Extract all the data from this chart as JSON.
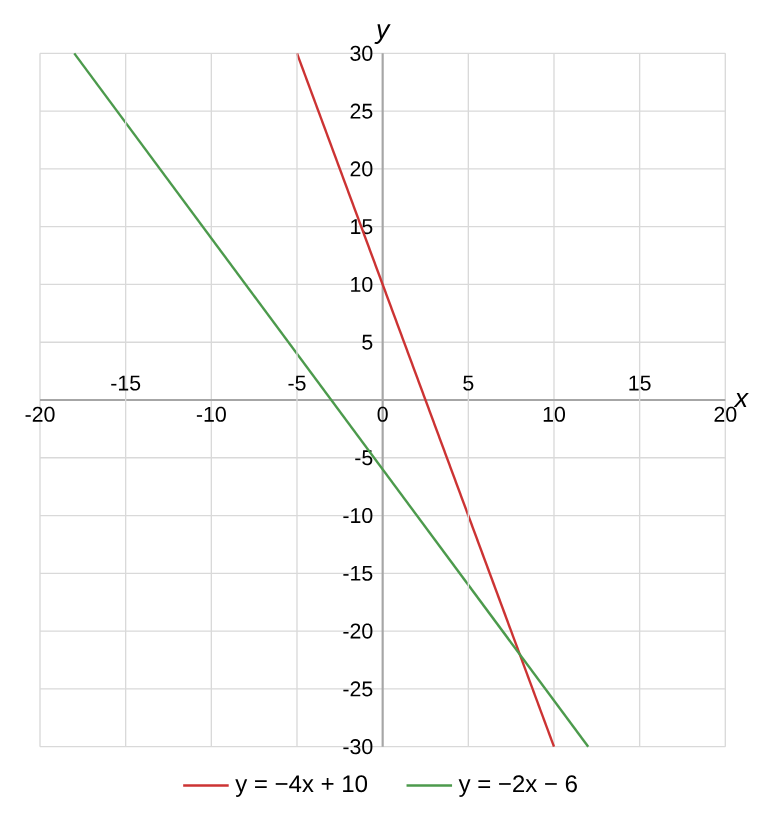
{
  "chart_data": {
    "type": "line",
    "xlabel": "x",
    "ylabel": "y",
    "xlim": [
      -20,
      20
    ],
    "ylim": [
      -30,
      30
    ],
    "xticks": [
      -20,
      -10,
      0,
      10,
      20
    ],
    "x2lim": [
      -20,
      20
    ],
    "x2ticks": [
      -15,
      -5,
      5,
      15
    ],
    "yticks": [
      -30,
      -25,
      -20,
      -15,
      -10,
      -5,
      5,
      10,
      15,
      20,
      25,
      30
    ],
    "grid": true,
    "legend": "bottom",
    "line_style": "solid",
    "marker": "none",
    "series": [
      {
        "name": "y = −4x + 10",
        "color": "#cc3333",
        "x": [
          -5,
          10
        ],
        "values": [
          30,
          -30
        ]
      },
      {
        "name": "y = −2x − 6",
        "color": "#4c9a4c",
        "x": [
          -18,
          12
        ],
        "values": [
          30,
          -30
        ]
      }
    ]
  }
}
